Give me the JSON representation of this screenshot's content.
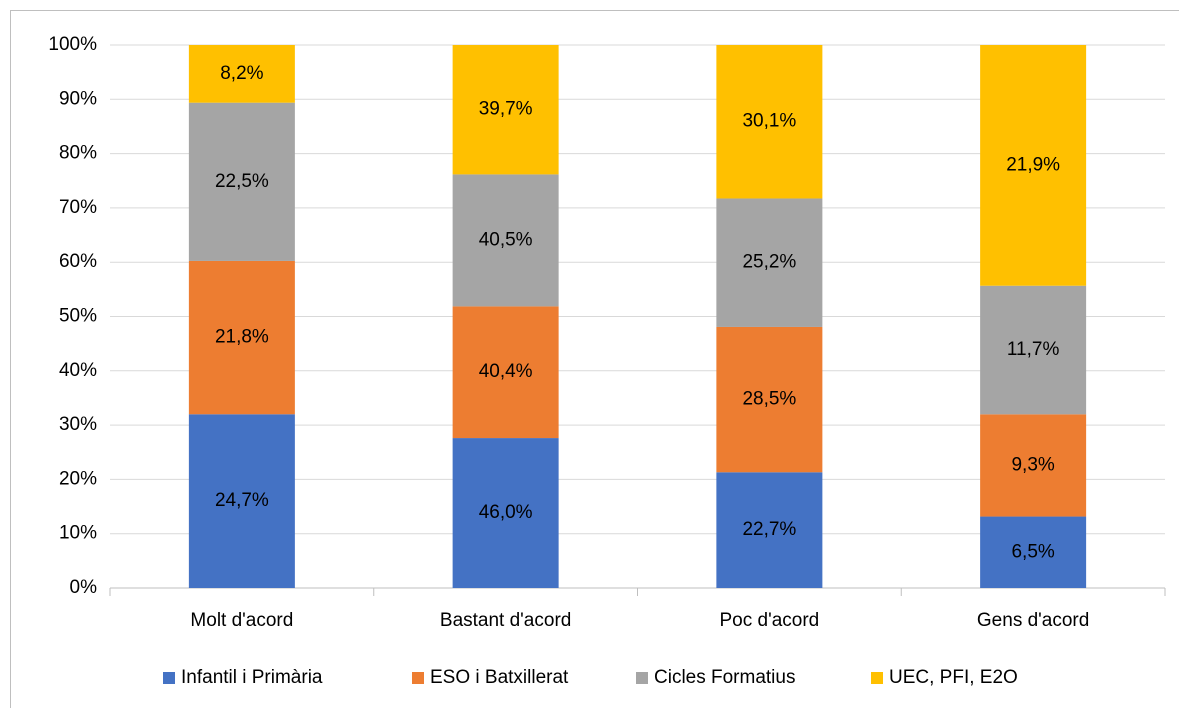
{
  "chart_data": {
    "type": "bar",
    "stack": "percent",
    "categories": [
      "Molt d'acord",
      "Bastant d'acord",
      "Poc d'acord",
      "Gens d'acord"
    ],
    "series": [
      {
        "name": "Infantil i Primària",
        "color": "#4472c4",
        "values": [
          24.7,
          46.0,
          22.7,
          6.5
        ],
        "value_labels": [
          "24,7%",
          "46,0%",
          "22,7%",
          "6,5%"
        ]
      },
      {
        "name": "ESO i Batxillerat",
        "color": "#ed7d31",
        "values": [
          21.8,
          40.4,
          28.5,
          9.3
        ],
        "value_labels": [
          "21,8%",
          "40,4%",
          "28,5%",
          "9,3%"
        ]
      },
      {
        "name": "Cicles Formatius",
        "color": "#a5a5a5",
        "values": [
          22.5,
          40.5,
          25.2,
          11.7
        ],
        "value_labels": [
          "22,5%",
          "40,5%",
          "25,2%",
          "11,7%"
        ]
      },
      {
        "name": "UEC, PFI, E2O",
        "color": "#ffc000",
        "values": [
          8.2,
          39.7,
          30.1,
          21.9
        ],
        "value_labels": [
          "8,2%",
          "39,7%",
          "30,1%",
          "21,9%"
        ]
      }
    ],
    "ylim": [
      0,
      100
    ],
    "yticks": [
      {
        "value": 0,
        "label": "0%"
      },
      {
        "value": 10,
        "label": "10%"
      },
      {
        "value": 20,
        "label": "20%"
      },
      {
        "value": 30,
        "label": "30%"
      },
      {
        "value": 40,
        "label": "40%"
      },
      {
        "value": 50,
        "label": "50%"
      },
      {
        "value": 60,
        "label": "60%"
      },
      {
        "value": 70,
        "label": "70%"
      },
      {
        "value": 80,
        "label": "80%"
      },
      {
        "value": 90,
        "label": "90%"
      },
      {
        "value": 100,
        "label": "100%"
      }
    ],
    "grid": true,
    "legend": "bottom"
  }
}
